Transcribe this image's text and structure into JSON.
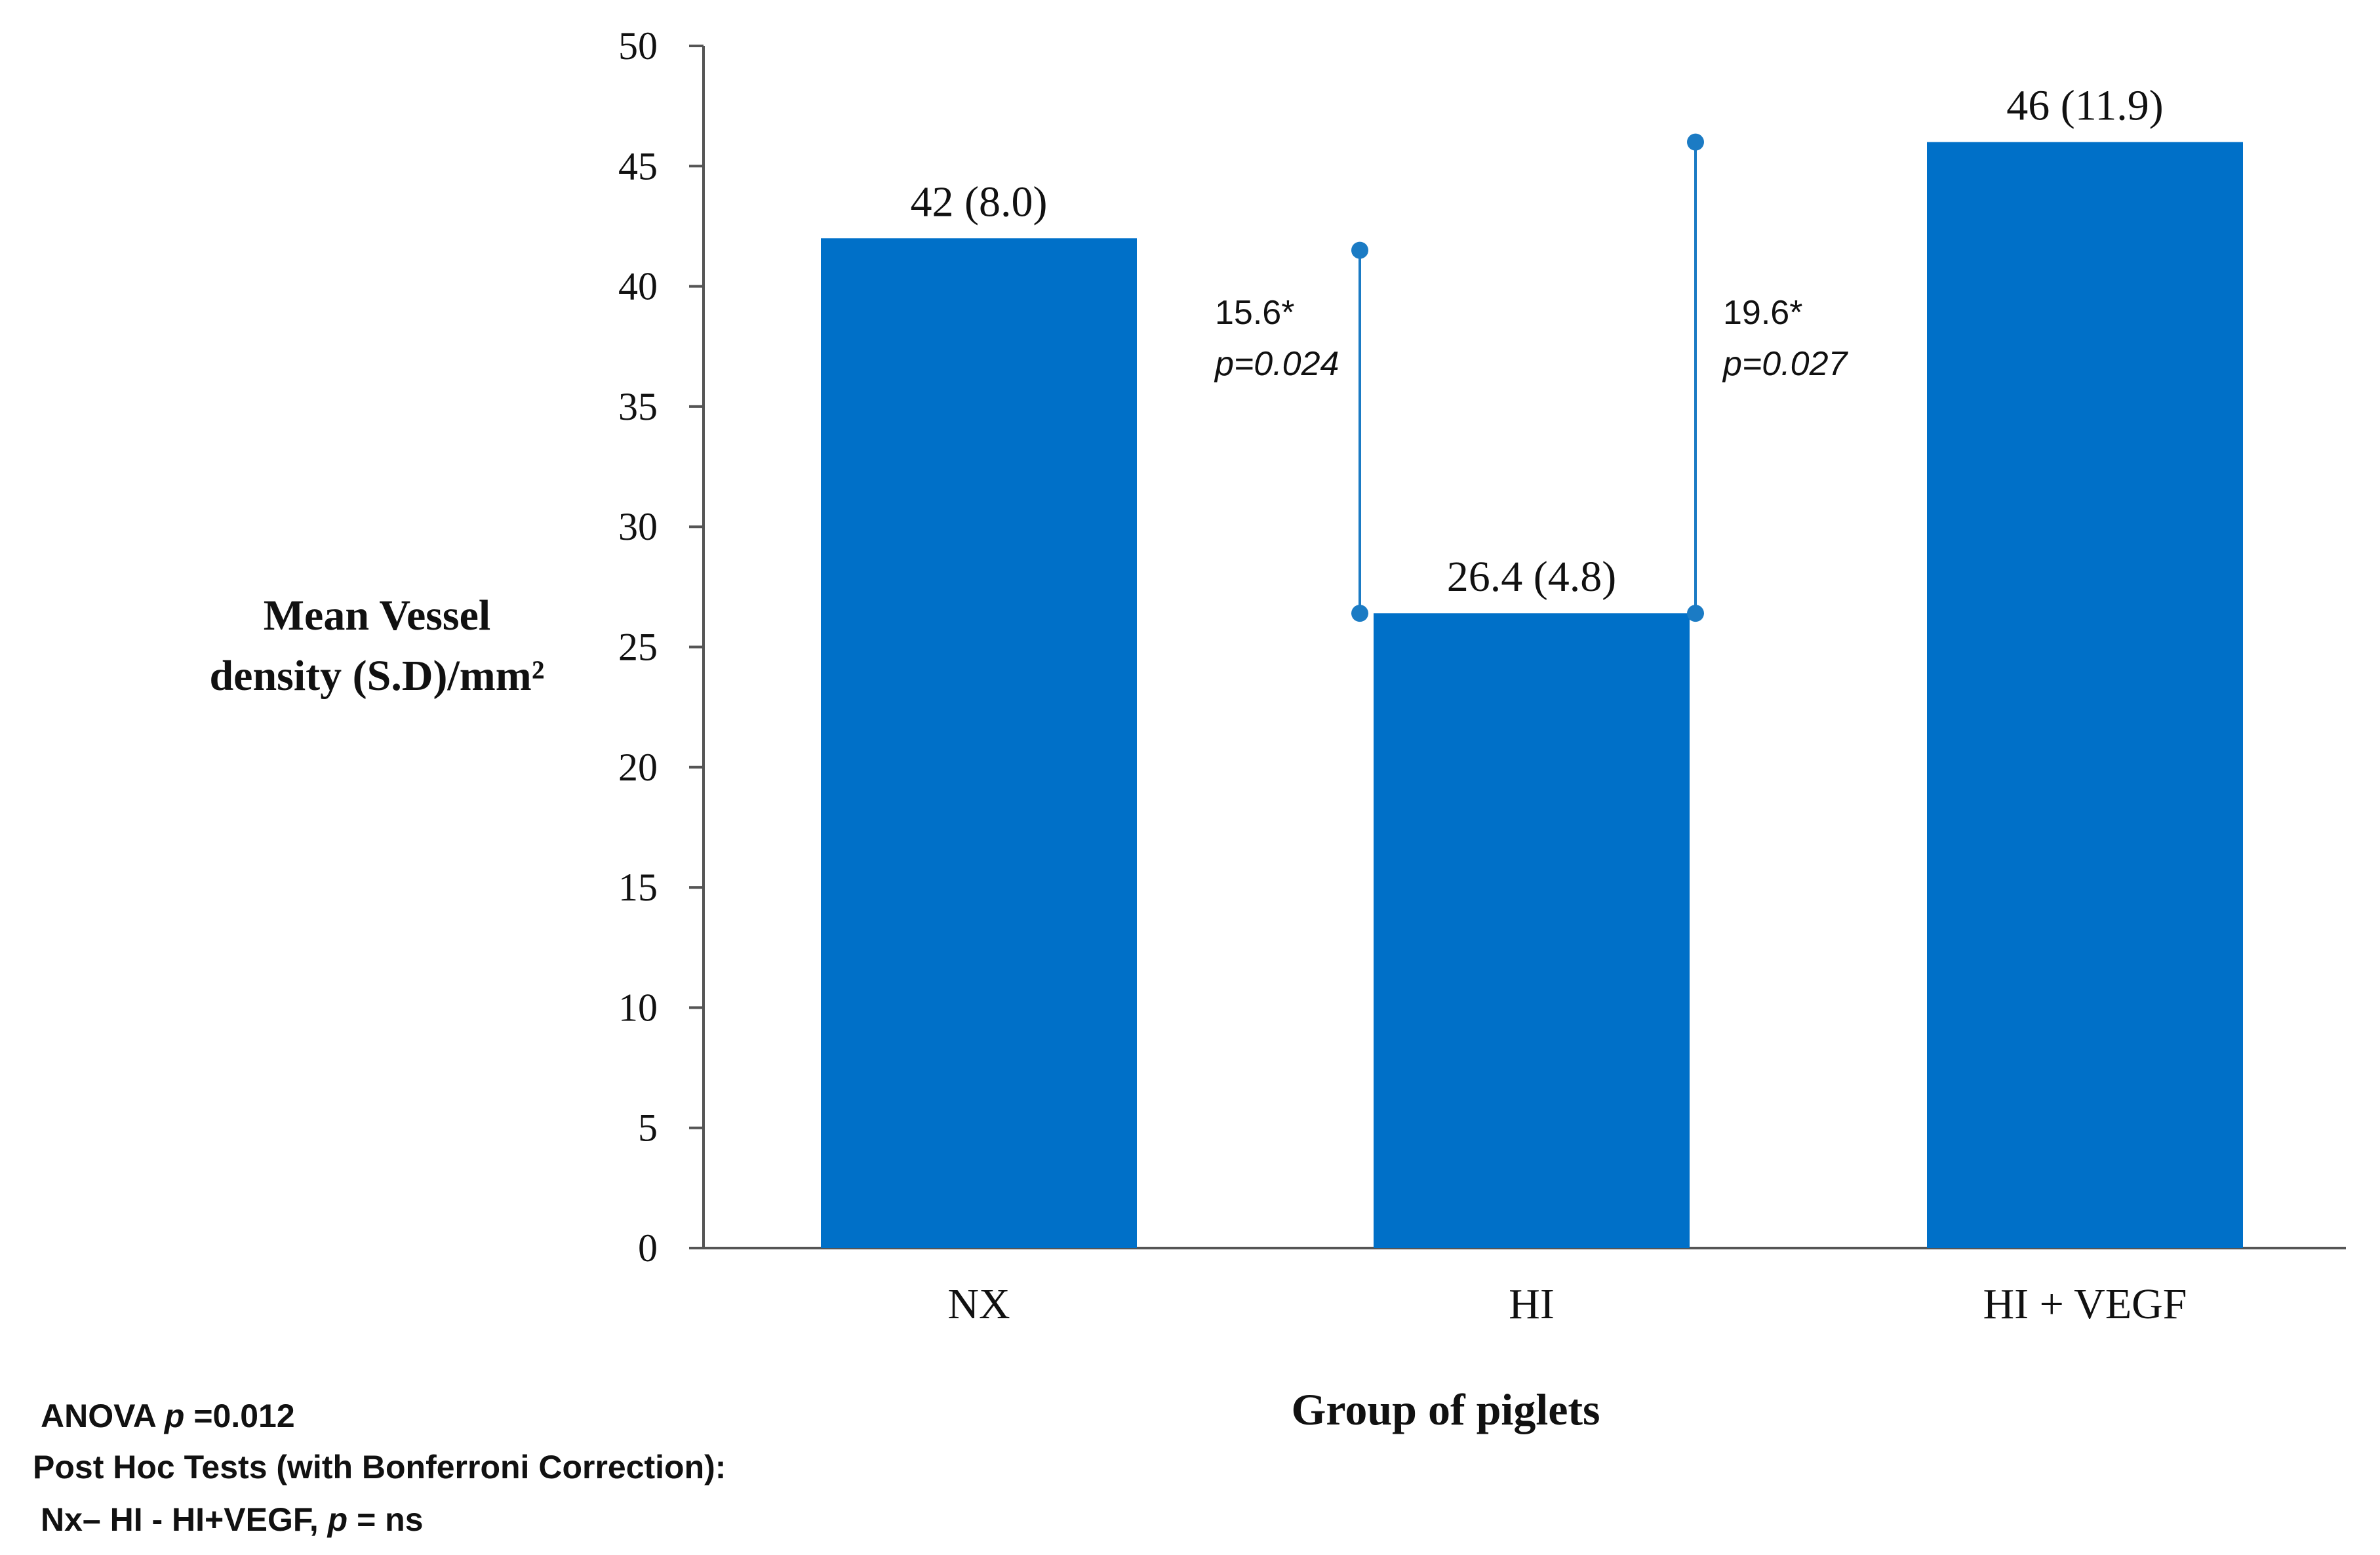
{
  "chart_data": {
    "type": "bar",
    "categories": [
      "NX",
      "HI",
      "HI + VEGF"
    ],
    "values": [
      42,
      26.4,
      46
    ],
    "sd": [
      8.0,
      4.8,
      11.9
    ],
    "value_labels": [
      "42 (8.0)",
      "26.4 (4.8)",
      "46 (11.9)"
    ],
    "title": "",
    "xlabel": "Group of piglets",
    "ylabel_line1": "Mean Vessel",
    "ylabel_line2": "density (S.D)/mm²",
    "ylim": [
      0,
      50
    ],
    "yticks": [
      0,
      5,
      10,
      15,
      20,
      25,
      30,
      35,
      40,
      45,
      50
    ],
    "bar_color": "#0070C8",
    "bracket_color": "#1B7BC4",
    "grid": false,
    "legend": "none",
    "comparisons": [
      {
        "from": "NX",
        "to": "HI",
        "low": 26.4,
        "high": 41.5,
        "diff": "15.6*",
        "p": "p=0.024"
      },
      {
        "from": "HI",
        "to": "HI + VEGF",
        "low": 26.4,
        "high": 46,
        "diff": "19.6*",
        "p": "p=0.027"
      }
    ]
  },
  "stats": {
    "anova_prefix": "ANOVA ",
    "anova_p_symbol": "p",
    "anova_value": " =0.012",
    "posthoc": "Post Hoc Tests (with Bonferroni Correction):",
    "pairwise_prefix": "Nx– HI - HI+VEGF, ",
    "pairwise_p_symbol": "p",
    "pairwise_value": " = ns"
  }
}
